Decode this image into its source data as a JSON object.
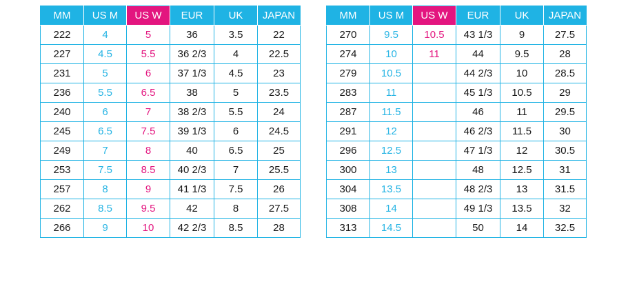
{
  "headers": [
    "MM",
    "US M",
    "US W",
    "EUR",
    "UK",
    "JAPAN"
  ],
  "colors": {
    "header_bg": "#1fb3e4",
    "usw_header_bg": "#e3157f",
    "usm_text": "#26b4e4",
    "usw_text": "#e3157f",
    "border": "#1fb3e4"
  },
  "left_table": {
    "rows": [
      [
        "222",
        "4",
        "5",
        "36",
        "3.5",
        "22"
      ],
      [
        "227",
        "4.5",
        "5.5",
        "36 2/3",
        "4",
        "22.5"
      ],
      [
        "231",
        "5",
        "6",
        "37 1/3",
        "4.5",
        "23"
      ],
      [
        "236",
        "5.5",
        "6.5",
        "38",
        "5",
        "23.5"
      ],
      [
        "240",
        "6",
        "7",
        "38 2/3",
        "5.5",
        "24"
      ],
      [
        "245",
        "6.5",
        "7.5",
        "39 1/3",
        "6",
        "24.5"
      ],
      [
        "249",
        "7",
        "8",
        "40",
        "6.5",
        "25"
      ],
      [
        "253",
        "7.5",
        "8.5",
        "40 2/3",
        "7",
        "25.5"
      ],
      [
        "257",
        "8",
        "9",
        "41 1/3",
        "7.5",
        "26"
      ],
      [
        "262",
        "8.5",
        "9.5",
        "42",
        "8",
        "27.5"
      ],
      [
        "266",
        "9",
        "10",
        "42 2/3",
        "8.5",
        "28"
      ]
    ]
  },
  "right_table": {
    "rows": [
      [
        "270",
        "9.5",
        "10.5",
        "43 1/3",
        "9",
        "27.5"
      ],
      [
        "274",
        "10",
        "11",
        "44",
        "9.5",
        "28"
      ],
      [
        "279",
        "10.5",
        "",
        "44 2/3",
        "10",
        "28.5"
      ],
      [
        "283",
        "11",
        "",
        "45 1/3",
        "10.5",
        "29"
      ],
      [
        "287",
        "11.5",
        "",
        "46",
        "11",
        "29.5"
      ],
      [
        "291",
        "12",
        "",
        "46 2/3",
        "11.5",
        "30"
      ],
      [
        "296",
        "12.5",
        "",
        "47 1/3",
        "12",
        "30.5"
      ],
      [
        "300",
        "13",
        "",
        "48",
        "12.5",
        "31"
      ],
      [
        "304",
        "13.5",
        "",
        "48 2/3",
        "13",
        "31.5"
      ],
      [
        "308",
        "14",
        "",
        "49 1/3",
        "13.5",
        "32"
      ],
      [
        "313",
        "14.5",
        "",
        "50",
        "14",
        "32.5"
      ]
    ]
  }
}
